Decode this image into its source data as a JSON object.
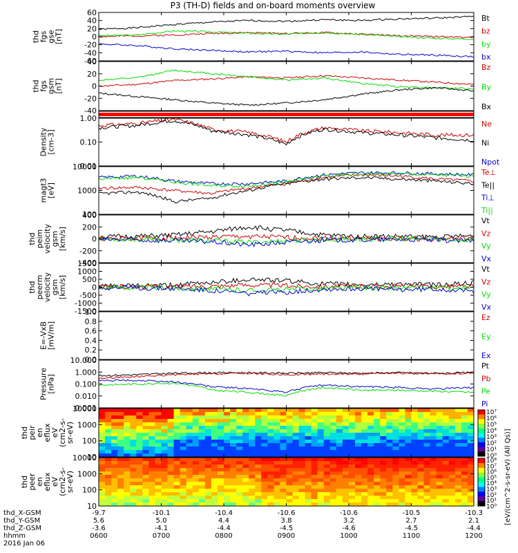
{
  "title": "P3 (TH-D) fields and on-board moments overview",
  "chart_data": [
    {
      "type": "line",
      "ylabel": [
        "thd",
        "fgs",
        "gse",
        "[nT]"
      ],
      "ylim": [
        -60,
        60
      ],
      "yticks": [
        60,
        40,
        20,
        0,
        -20,
        -40,
        -60
      ],
      "series": [
        {
          "name": "Bt",
          "color": "#000000",
          "values": [
            18,
            22,
            30,
            36,
            40,
            38,
            42,
            40,
            44,
            46,
            50
          ]
        },
        {
          "name": "bz",
          "color": "#cc0000",
          "values": [
            0,
            2,
            4,
            8,
            10,
            8,
            10,
            6,
            2,
            0,
            -2
          ]
        },
        {
          "name": "by",
          "color": "#00dd00",
          "values": [
            2,
            4,
            14,
            12,
            8,
            6,
            10,
            6,
            0,
            -4,
            -6
          ]
        },
        {
          "name": "bx",
          "color": "#0000cc",
          "values": [
            -18,
            -22,
            -30,
            -34,
            -38,
            -36,
            -40,
            -38,
            -44,
            -46,
            -50
          ]
        }
      ]
    },
    {
      "type": "line",
      "ylabel": [
        "thd",
        "fgs",
        "gsm",
        "[nT]"
      ],
      "ylim": [
        -50,
        40
      ],
      "yticks": [
        40,
        20,
        0,
        -20,
        -40
      ],
      "series": [
        {
          "name": "Bz",
          "color": "#cc0000",
          "values": [
            -5,
            -2,
            5,
            8,
            12,
            10,
            14,
            10,
            6,
            2,
            -2
          ]
        },
        {
          "name": "By",
          "color": "#00dd00",
          "values": [
            6,
            10,
            24,
            18,
            12,
            6,
            10,
            0,
            -6,
            -8,
            -10
          ]
        },
        {
          "name": "Bx",
          "color": "#000000",
          "values": [
            -18,
            -24,
            -30,
            -36,
            -40,
            -36,
            -30,
            -20,
            -12,
            -8,
            -14
          ]
        }
      ]
    },
    {
      "type": "heatmap",
      "label": "",
      "color": "#ff0000"
    },
    {
      "type": "line",
      "ylabel": [
        "Density",
        "[cm-3]"
      ],
      "scale": "log",
      "ylim": [
        0.01,
        1.0
      ],
      "yticks": [
        "1.00",
        "0.10",
        "0.01"
      ],
      "series": [
        {
          "name": "Ne",
          "color": "#cc0000",
          "values": [
            0.5,
            0.6,
            0.9,
            0.35,
            0.25,
            0.1,
            0.4,
            0.3,
            0.25,
            0.2,
            0.2
          ]
        },
        {
          "name": "Ni",
          "color": "#000000",
          "values": [
            0.4,
            0.5,
            0.8,
            0.3,
            0.2,
            0.08,
            0.35,
            0.25,
            0.2,
            0.15,
            0.12
          ]
        },
        {
          "name": "Npot",
          "color": "#0000cc",
          "values": []
        }
      ]
    },
    {
      "type": "line",
      "ylabel": [
        "magt3",
        "[eV]"
      ],
      "scale": "log",
      "ylim": [
        50,
        10000
      ],
      "yticks": [
        "10000",
        "1000",
        "100"
      ],
      "series": [
        {
          "name": "Te⊥",
          "color": "#cc0000",
          "values": [
            900,
            1000,
            700,
            500,
            900,
            1500,
            3000,
            4000,
            3500,
            2500,
            2000
          ]
        },
        {
          "name": "Te||",
          "color": "#000000",
          "values": [
            500,
            600,
            200,
            300,
            700,
            1500,
            2500,
            3000,
            2500,
            2000,
            1500
          ]
        },
        {
          "name": "Ti⊥",
          "color": "#0000cc",
          "values": [
            3000,
            3500,
            2000,
            1500,
            1500,
            2000,
            4000,
            5000,
            5000,
            4500,
            4000
          ]
        },
        {
          "name": "Ti||",
          "color": "#00dd00",
          "values": [
            2500,
            3000,
            1800,
            1200,
            1200,
            1800,
            3500,
            4500,
            4500,
            4000,
            3500
          ]
        }
      ]
    },
    {
      "type": "line",
      "ylabel": [
        "thd",
        "peim",
        "velocity",
        "gsm",
        "[km/s]"
      ],
      "ylim": [
        -400,
        400
      ],
      "yticks": [
        400,
        200,
        0,
        -200,
        -400
      ],
      "series": [
        {
          "name": "Vt",
          "color": "#000000",
          "values": [
            30,
            40,
            60,
            120,
            200,
            140,
            60,
            40,
            40,
            30,
            50
          ]
        },
        {
          "name": "Vz",
          "color": "#cc0000",
          "values": [
            0,
            10,
            20,
            30,
            40,
            20,
            10,
            10,
            0,
            0,
            10
          ]
        },
        {
          "name": "Vy",
          "color": "#00dd00",
          "values": [
            0,
            -10,
            -20,
            -30,
            -60,
            -30,
            -10,
            -10,
            0,
            -10,
            -20
          ]
        },
        {
          "name": "Vx",
          "color": "#0000cc",
          "values": [
            -10,
            -20,
            -30,
            -50,
            -100,
            -60,
            -20,
            -20,
            -10,
            -20,
            -40
          ]
        }
      ]
    },
    {
      "type": "line",
      "ylabel": [
        "thd",
        "peerm",
        "velocity",
        "gsm",
        "[km/s]"
      ],
      "ylim": [
        -1500,
        1500
      ],
      "yticks": [
        1500,
        1000,
        500,
        0,
        -500,
        -1000,
        -1500
      ],
      "series": [
        {
          "name": "Vt",
          "color": "#000000",
          "values": [
            60,
            80,
            120,
            300,
            500,
            400,
            200,
            150,
            200,
            150,
            250
          ]
        },
        {
          "name": "Vz",
          "color": "#cc0000",
          "values": [
            10,
            20,
            40,
            80,
            150,
            100,
            50,
            50,
            60,
            40,
            60
          ]
        },
        {
          "name": "Vy",
          "color": "#00dd00",
          "values": [
            -10,
            -20,
            -40,
            -100,
            -200,
            -150,
            -60,
            -40,
            -60,
            -40,
            -80
          ]
        },
        {
          "name": "Vx",
          "color": "#0000cc",
          "values": [
            -20,
            -40,
            -80,
            -200,
            -400,
            -300,
            -120,
            -80,
            -150,
            -100,
            -250
          ]
        }
      ]
    },
    {
      "type": "line",
      "ylabel": [
        "E=-VxB",
        "[mV/m]"
      ],
      "ylim": [
        0,
        1.0
      ],
      "yticks": [
        "1.0",
        "0.8",
        "0.6",
        "0.4",
        "0.2",
        "0.0"
      ],
      "series": [
        {
          "name": "Ez",
          "color": "#cc0000",
          "values": []
        },
        {
          "name": "Ey",
          "color": "#00dd00",
          "values": []
        },
        {
          "name": "Ex",
          "color": "#0000cc",
          "values": []
        }
      ]
    },
    {
      "type": "line",
      "ylabel": [
        "Pressure",
        "[nPa]"
      ],
      "scale": "log",
      "ylim": [
        0.001,
        10
      ],
      "yticks": [
        "10.000",
        "1.000",
        "0.100",
        "0.010",
        "0.001"
      ],
      "series": [
        {
          "name": "Pt",
          "color": "#000000",
          "values": [
            0.5,
            0.6,
            0.8,
            0.9,
            0.9,
            0.8,
            0.9,
            0.8,
            0.9,
            0.8,
            0.9
          ]
        },
        {
          "name": "Pb",
          "color": "#cc0000",
          "values": [
            0.3,
            0.4,
            0.6,
            0.7,
            0.8,
            0.6,
            0.7,
            0.7,
            0.8,
            0.7,
            0.8
          ]
        },
        {
          "name": "Pe",
          "color": "#00dd00",
          "values": [
            0.08,
            0.1,
            0.12,
            0.03,
            0.02,
            0.01,
            0.05,
            0.03,
            0.03,
            0.025,
            0.02
          ]
        },
        {
          "name": "Pi",
          "color": "#0000cc",
          "values": [
            0.2,
            0.2,
            0.15,
            0.06,
            0.04,
            0.02,
            0.08,
            0.06,
            0.05,
            0.04,
            0.05
          ]
        }
      ]
    },
    {
      "type": "heatmap",
      "ylabel": [
        "thd",
        "peir",
        "en",
        "eflux",
        "eV",
        "(cm2-s-",
        "sr-eV)"
      ],
      "scale": "log",
      "ylim": [
        5,
        20000
      ],
      "yticks": [
        "10000",
        "1000",
        "100",
        "10"
      ]
    },
    {
      "type": "heatmap",
      "ylabel": [
        "thd",
        "peer",
        "en",
        "eflux",
        "eV",
        "(cm2-s-",
        "sr-eV)"
      ],
      "scale": "log",
      "ylim": [
        5,
        20000
      ],
      "yticks": [
        "10000",
        "1000",
        "100",
        "10"
      ]
    }
  ],
  "colorbar": {
    "label": "[eV/(cm^2-s-sr-eV) (All Qs)]",
    "ticks": [
      "10⁷",
      "10⁶",
      "10⁵",
      "10⁴",
      "10³",
      "10²",
      "10¹",
      "10⁰"
    ],
    "ticks2": [
      "10⁸",
      "10⁷",
      "10⁶",
      "10⁵",
      "10⁴",
      "10³",
      "10²",
      "10¹",
      "10⁰"
    ]
  },
  "xaxis": {
    "rows": [
      {
        "label": "thd_X-GSM",
        "values": [
          "-9.7",
          "-10.1",
          "-10.4",
          "-10.6",
          "-10.6",
          "-10.5",
          "-10.3"
        ]
      },
      {
        "label": "thd_Y-GSM",
        "values": [
          "5.6",
          "5.0",
          "4.4",
          "3.8",
          "3.2",
          "2.7",
          "2.1"
        ]
      },
      {
        "label": "thd_Z-GSM",
        "values": [
          "-3.6",
          "-4.1",
          "-4.4",
          "-4.5",
          "-4.6",
          "-4.5",
          "-4.4"
        ]
      },
      {
        "label": "hhmm",
        "values": [
          "0600",
          "0700",
          "0800",
          "0900",
          "1000",
          "1100",
          "1200"
        ]
      }
    ],
    "date": "2016 Jan 06"
  }
}
